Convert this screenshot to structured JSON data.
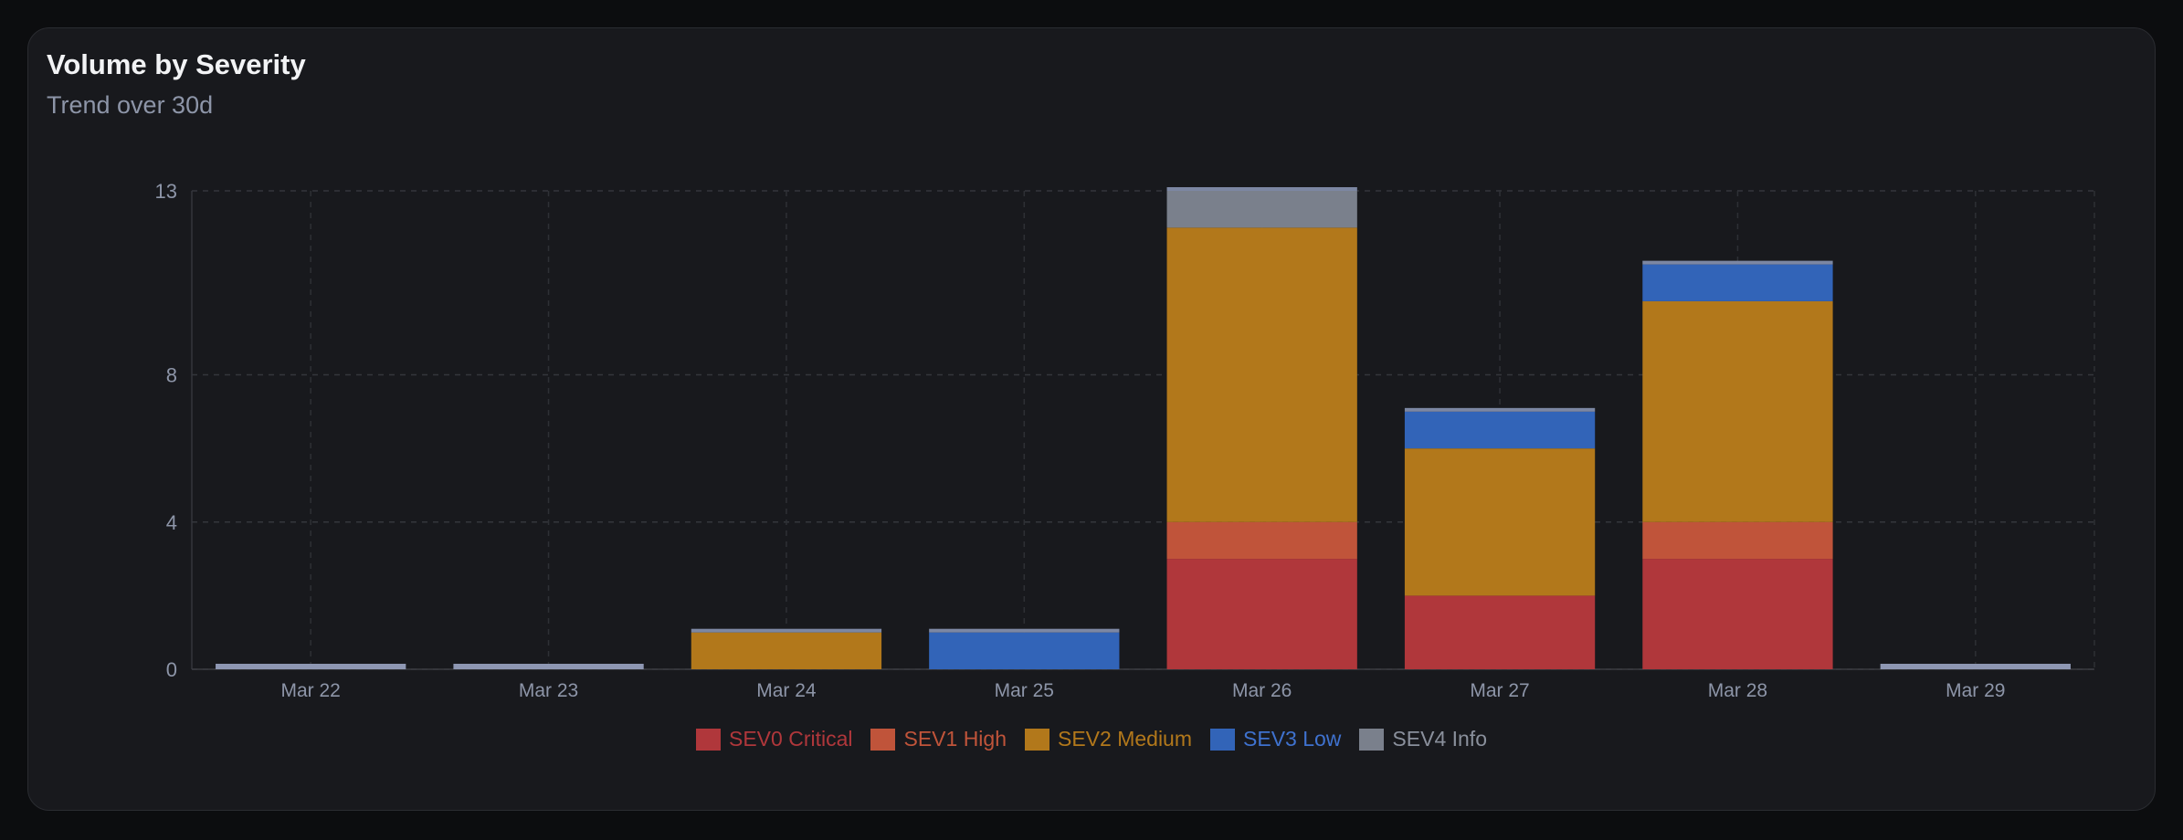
{
  "header": {
    "title": "Volume by Severity",
    "subtitle": "Trend over 30d"
  },
  "chart_data": {
    "type": "bar",
    "stacked": true,
    "title": "Volume by Severity",
    "subtitle": "Trend over 30d",
    "xlabel": "",
    "ylabel": "",
    "categories": [
      "Mar 22",
      "Mar 23",
      "Mar 24",
      "Mar 25",
      "Mar 26",
      "Mar 27",
      "Mar 28",
      "Mar 29"
    ],
    "ylim": [
      0,
      13
    ],
    "yticks": [
      0,
      4,
      8,
      13
    ],
    "grid": true,
    "legend": "bottom",
    "series": [
      {
        "name": "SEV0 Critical",
        "color": "#b0373b",
        "values": [
          0,
          0,
          0,
          0,
          3,
          2,
          3,
          0
        ]
      },
      {
        "name": "SEV1 High",
        "color": "#c0543a",
        "values": [
          0,
          0,
          0,
          0,
          1,
          0,
          1,
          0
        ]
      },
      {
        "name": "SEV2 Medium",
        "color": "#b2781b",
        "values": [
          0,
          0,
          1,
          0,
          8,
          4,
          6,
          0
        ]
      },
      {
        "name": "SEV3 Low",
        "color": "#3264b8",
        "values": [
          0,
          0,
          0,
          1,
          0,
          1,
          1,
          0
        ]
      },
      {
        "name": "SEV4 Info",
        "color": "#7a808c",
        "values": [
          0,
          0,
          0,
          0,
          1,
          0,
          0,
          0
        ]
      }
    ]
  }
}
